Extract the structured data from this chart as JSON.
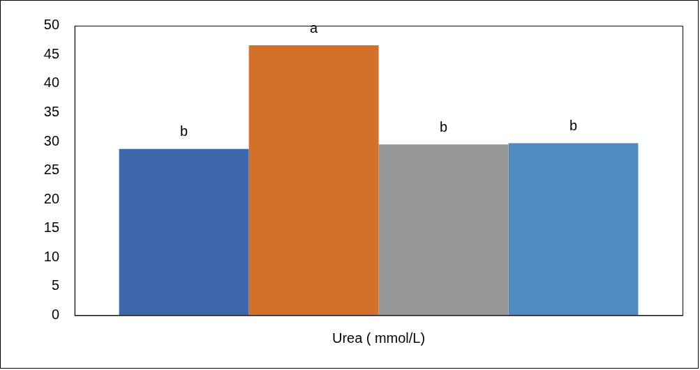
{
  "chart_data": {
    "type": "bar",
    "categories": [
      "Urea ( mmol/L)"
    ],
    "series": [
      {
        "color": "#3f67ae",
        "values": [
          28.7
        ],
        "value_labels": [
          "b"
        ]
      },
      {
        "color": "#d4702a",
        "values": [
          46.6
        ],
        "value_labels": [
          "a"
        ]
      },
      {
        "color": "#969696",
        "values": [
          29.5
        ],
        "value_labels": [
          "b"
        ]
      },
      {
        "color": "#508ac0",
        "values": [
          29.7
        ],
        "value_labels": [
          "b"
        ]
      }
    ],
    "ylim": [
      0,
      50
    ],
    "yticks": [
      0,
      5,
      10,
      15,
      20,
      25,
      30,
      35,
      40,
      45,
      50
    ],
    "grid": false,
    "legend": false
  }
}
